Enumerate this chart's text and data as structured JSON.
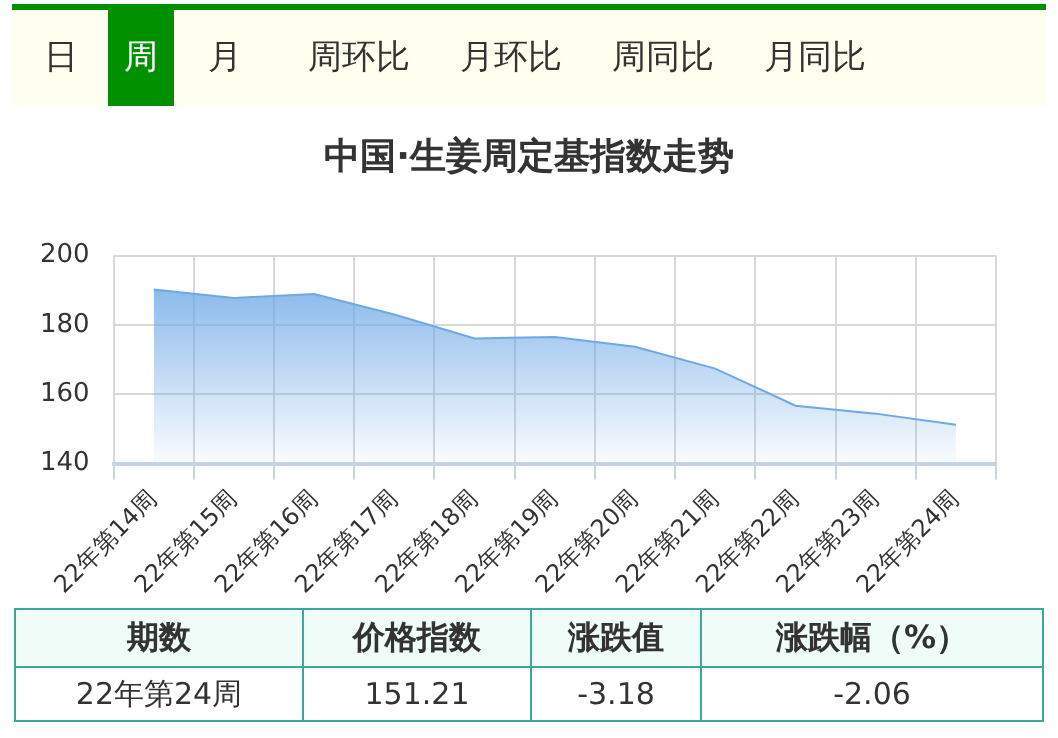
{
  "chart_data": {
    "type": "area",
    "title": "中国·生姜周定基指数走势",
    "categories": [
      "22年第14周",
      "22年第15周",
      "22年第16周",
      "22年第17周",
      "22年第18周",
      "22年第19周",
      "22年第20周",
      "22年第21周",
      "22年第22周",
      "22年第23周",
      "22年第24周"
    ],
    "series": [
      {
        "color": "#6fa8e6",
        "values": [
          190.2,
          187.8,
          188.9,
          183.0,
          176.1,
          176.5,
          173.7,
          167.4,
          156.7,
          154.4,
          151.21
        ]
      }
    ],
    "ylim": [
      140,
      200
    ],
    "yticks": [
      140,
      160,
      180,
      200
    ],
    "grid": true,
    "legend": false,
    "marker": "none",
    "line_style": "solid",
    "annotations": [
      "日",
      "周",
      "月",
      "周环比",
      "月环比",
      "周同比",
      "月同比",
      "期数",
      "价格指数",
      "涨跌值",
      "涨跌幅（%）",
      "22年第24周",
      "151.21",
      "-3.18",
      "-2.06"
    ]
  }
}
